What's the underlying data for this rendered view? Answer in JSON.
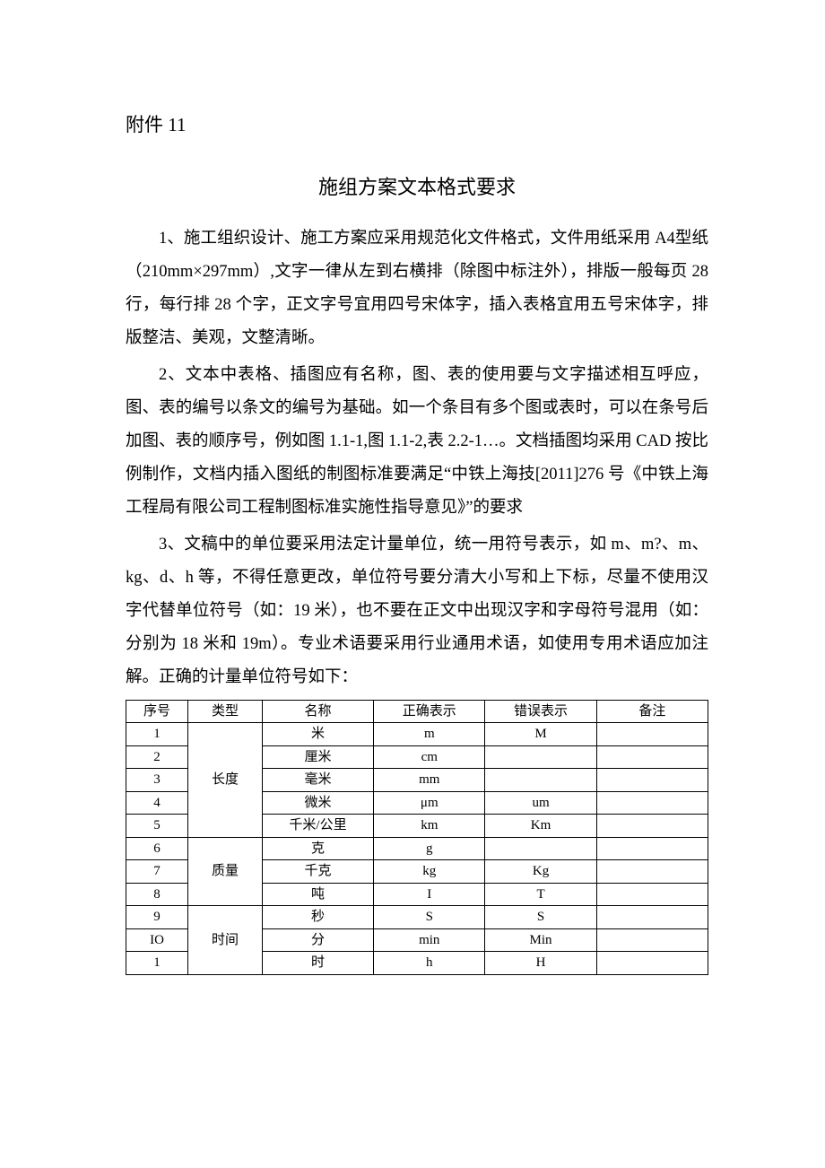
{
  "attachment_label": "附件 11",
  "title": "施组方案文本格式要求",
  "paragraphs": {
    "p1": "1、施工组织设计、施工方案应采用规范化文件格式，文件用纸采用 A4型纸（210mm×297mm）,文字一律从左到右横排（除图中标注外），排版一般每页 28 行，每行排 28 个字，正文字号宜用四号宋体字，插入表格宜用五号宋体字，排版整洁、美观，文整清晰。",
    "p2": "2、文本中表格、插图应有名称，图、表的使用要与文字描述相互呼应，图、表的编号以条文的编号为基础。如一个条目有多个图或表时，可以在条号后加图、表的顺序号，例如图 1.1-1,图 1.1-2,表 2.2-1…。文档插图均采用 CAD 按比例制作，文档内插入图纸的制图标准要满足“中铁上海技[2011]276 号《中铁上海工程局有限公司工程制图标准实施性指导意见》”的要求",
    "p3": "3、文稿中的单位要采用法定计量单位，统一用符号表示，如 m、m?、m、kg、d、h 等，不得任意更改，单位符号要分清大小写和上下标，尽量不使用汉字代替单位符号（如：19 米），也不要在正文中出现汉字和字母符号混用（如：分别为 18 米和 19m）。专业术语要采用行业通用术语，如使用专用术语应加注解。正确的计量单位符号如下："
  },
  "table": {
    "headers": [
      "序号",
      "类型",
      "名称",
      "正确表示",
      "错误表示",
      "备注"
    ],
    "groups": [
      {
        "type": "长度",
        "rows": [
          {
            "seq": "1",
            "name": "米",
            "correct": "m",
            "wrong": "M",
            "remark": ""
          },
          {
            "seq": "2",
            "name": "厘米",
            "correct": "cm",
            "wrong": "",
            "remark": ""
          },
          {
            "seq": "3",
            "name": "毫米",
            "correct": "mm",
            "wrong": "",
            "remark": ""
          },
          {
            "seq": "4",
            "name": "微米",
            "correct": "μm",
            "wrong": "um",
            "remark": ""
          },
          {
            "seq": "5",
            "name": "千米/公里",
            "correct": "km",
            "wrong": "Km",
            "remark": ""
          }
        ]
      },
      {
        "type": "质量",
        "rows": [
          {
            "seq": "6",
            "name": "克",
            "correct": "g",
            "wrong": "",
            "remark": ""
          },
          {
            "seq": "7",
            "name": "千克",
            "correct": "kg",
            "wrong": "Kg",
            "remark": ""
          },
          {
            "seq": "8",
            "name": "吨",
            "correct": "I",
            "wrong": "T",
            "remark": ""
          }
        ]
      },
      {
        "type": "时间",
        "rows": [
          {
            "seq": "9",
            "name": "秒",
            "correct": "S",
            "wrong": "S",
            "remark": ""
          },
          {
            "seq": "IO",
            "name": "分",
            "correct": "min",
            "wrong": "Min",
            "remark": ""
          },
          {
            "seq": "1",
            "name": "时",
            "correct": "h",
            "wrong": "H",
            "remark": ""
          }
        ]
      }
    ]
  }
}
